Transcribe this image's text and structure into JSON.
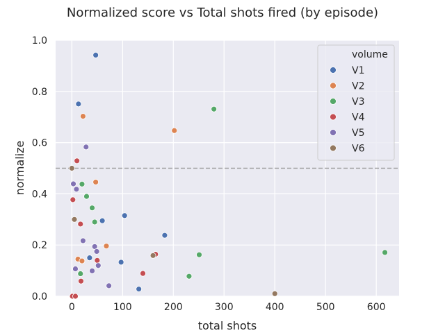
{
  "chart_data": {
    "type": "scatter",
    "title": "Normalized score vs Total shots fired (by episode)",
    "xlabel": "total shots",
    "ylabel": "normalize",
    "xlim": [
      -32,
      645
    ],
    "ylim": [
      0,
      1.0
    ],
    "xticks": [
      0,
      100,
      200,
      300,
      400,
      500,
      600
    ],
    "yticks": [
      0.0,
      0.2,
      0.4,
      0.6,
      0.8,
      1.0
    ],
    "xtick_labels": [
      "0",
      "100",
      "200",
      "300",
      "400",
      "500",
      "600"
    ],
    "ytick_labels": [
      "0.0",
      "0.2",
      "0.4",
      "0.6",
      "0.8",
      "1.0"
    ],
    "grid": true,
    "background": "#EAEAF2",
    "reference_line": {
      "y": 0.5,
      "style": "dashed",
      "color": "#A0A0A0"
    },
    "legend": {
      "title": "volume",
      "placement": "top-right"
    },
    "series": [
      {
        "name": "V1",
        "color": "#4C72B0",
        "points": [
          [
            47,
            0.942
          ],
          [
            13,
            0.751
          ],
          [
            104,
            0.315
          ],
          [
            60,
            0.295
          ],
          [
            183,
            0.238
          ],
          [
            35,
            0.15
          ],
          [
            97,
            0.133
          ],
          [
            132,
            0.028
          ],
          [
            2,
            0.0
          ]
        ]
      },
      {
        "name": "V2",
        "color": "#DD8452",
        "points": [
          [
            22,
            0.703
          ],
          [
            202,
            0.647
          ],
          [
            47,
            0.446
          ],
          [
            68,
            0.196
          ],
          [
            12,
            0.145
          ],
          [
            20,
            0.138
          ],
          [
            2,
            0.0
          ],
          [
            5,
            0.0
          ]
        ]
      },
      {
        "name": "V3",
        "color": "#55A868",
        "points": [
          [
            280,
            0.731
          ],
          [
            20,
            0.438
          ],
          [
            29,
            0.39
          ],
          [
            40,
            0.345
          ],
          [
            45,
            0.29
          ],
          [
            251,
            0.162
          ],
          [
            617,
            0.171
          ],
          [
            17,
            0.088
          ],
          [
            231,
            0.078
          ]
        ]
      },
      {
        "name": "V4",
        "color": "#C44E52",
        "points": [
          [
            10,
            0.529
          ],
          [
            2,
            0.377
          ],
          [
            17,
            0.282
          ],
          [
            165,
            0.164
          ],
          [
            50,
            0.14
          ],
          [
            140,
            0.089
          ],
          [
            18,
            0.059
          ],
          [
            1,
            0.0
          ],
          [
            7,
            0.0
          ]
        ]
      },
      {
        "name": "V5",
        "color": "#8172B3",
        "points": [
          [
            28,
            0.583
          ],
          [
            3,
            0.439
          ],
          [
            9,
            0.418
          ],
          [
            22,
            0.217
          ],
          [
            45,
            0.194
          ],
          [
            49,
            0.175
          ],
          [
            52,
            0.12
          ],
          [
            7,
            0.107
          ],
          [
            40,
            0.099
          ],
          [
            73,
            0.041
          ]
        ]
      },
      {
        "name": "V6",
        "color": "#937860",
        "points": [
          [
            0,
            0.5
          ],
          [
            5,
            0.3
          ],
          [
            160,
            0.159
          ],
          [
            400,
            0.01
          ]
        ]
      }
    ]
  }
}
